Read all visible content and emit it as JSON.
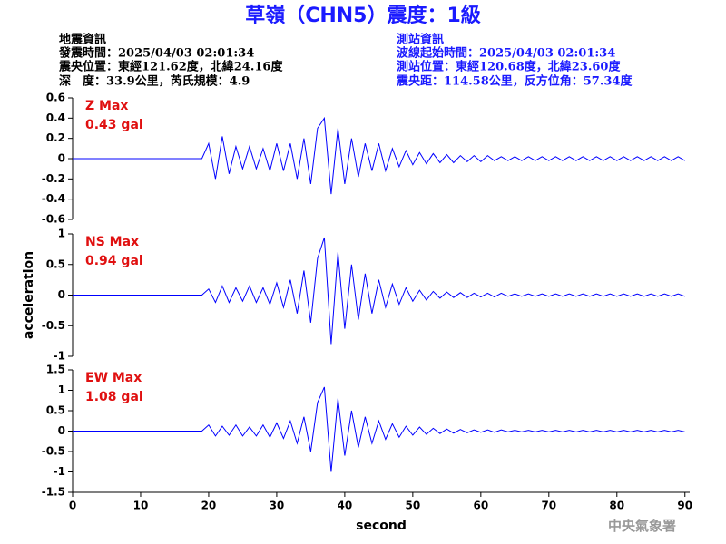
{
  "header": {
    "title": "草嶺（CHN5）震度：1級",
    "left": [
      "地震資訊",
      "發震時間：2025/04/03 02:01:34",
      "震央位置：東經121.62度，北緯24.16度",
      "深　度：33.9公里，芮氏規模：4.9"
    ],
    "right": [
      "測站資訊",
      "波線起始時間：2025/04/03 02:01:34",
      "測站位置：東經120.68度，北緯23.60度",
      "震央距：114.58公里，反方位角：57.34度"
    ],
    "watermark": "中央氣象署"
  },
  "chart_data": [
    {
      "type": "line",
      "annotations": [
        "Z Max",
        "0.43 gal"
      ],
      "xlim": [
        0,
        90.7
      ],
      "ylim": [
        -0.6,
        0.6
      ],
      "yticks": [
        0.6,
        0.4,
        0.2,
        0,
        -0.2,
        -0.4,
        -0.6
      ],
      "x": [
        0,
        19,
        20,
        21,
        22,
        23,
        24,
        25,
        26,
        27,
        28,
        29,
        30,
        31,
        32,
        33,
        34,
        35,
        36,
        37,
        38,
        39,
        40,
        41,
        42,
        43,
        44,
        45,
        46,
        47,
        48,
        49,
        50,
        51,
        52,
        53,
        54,
        55,
        56,
        57,
        58,
        59,
        60,
        61,
        62,
        63,
        64,
        65,
        66,
        67,
        68,
        69,
        70,
        71,
        72,
        73,
        74,
        75,
        76,
        77,
        78,
        79,
        80,
        81,
        82,
        83,
        84,
        85,
        86,
        87,
        88,
        89,
        90
      ],
      "series": [
        {
          "color": "#0000ff",
          "values": [
            0,
            0,
            0.15,
            -0.2,
            0.22,
            -0.15,
            0.12,
            -0.1,
            0.12,
            -0.1,
            0.1,
            -0.12,
            0.15,
            -0.12,
            0.15,
            -0.2,
            0.2,
            -0.25,
            0.3,
            0.4,
            -0.35,
            0.3,
            -0.25,
            0.2,
            -0.18,
            0.15,
            -0.12,
            0.15,
            -0.12,
            0.1,
            -0.08,
            0.08,
            -0.06,
            0.06,
            -0.05,
            0.05,
            -0.04,
            0.04,
            -0.04,
            0.03,
            -0.03,
            0.03,
            -0.03,
            0.03,
            -0.02,
            0.02,
            -0.02,
            0.02,
            -0.02,
            0.02,
            -0.02,
            0.02,
            -0.02,
            0.02,
            -0.02,
            0.02,
            -0.02,
            0.02,
            -0.02,
            0.02,
            -0.02,
            0.02,
            -0.02,
            0.02,
            -0.02,
            0.02,
            -0.02,
            0.02,
            -0.02,
            0.02,
            -0.02,
            0.02,
            -0.02
          ]
        }
      ]
    },
    {
      "type": "line",
      "annotations": [
        "NS Max",
        "0.94 gal"
      ],
      "ylabel": "acceleration",
      "xlim": [
        0,
        90.7
      ],
      "ylim": [
        -1,
        1
      ],
      "yticks": [
        1,
        0.5,
        0,
        -0.5,
        -1
      ],
      "x": [
        0,
        19,
        20,
        21,
        22,
        23,
        24,
        25,
        26,
        27,
        28,
        29,
        30,
        31,
        32,
        33,
        34,
        35,
        36,
        37,
        38,
        39,
        40,
        41,
        42,
        43,
        44,
        45,
        46,
        47,
        48,
        49,
        50,
        51,
        52,
        53,
        54,
        55,
        56,
        57,
        58,
        59,
        60,
        61,
        62,
        63,
        64,
        65,
        66,
        67,
        68,
        69,
        70,
        71,
        72,
        73,
        74,
        75,
        76,
        77,
        78,
        79,
        80,
        81,
        82,
        83,
        84,
        85,
        86,
        87,
        88,
        89,
        90
      ],
      "series": [
        {
          "color": "#0000ff",
          "values": [
            0,
            0,
            0.1,
            -0.12,
            0.15,
            -0.12,
            0.12,
            -0.1,
            0.15,
            -0.12,
            0.12,
            -0.15,
            0.2,
            -0.2,
            0.25,
            -0.3,
            0.4,
            -0.45,
            0.6,
            0.94,
            -0.8,
            0.7,
            -0.55,
            0.5,
            -0.4,
            0.35,
            -0.3,
            0.25,
            -0.2,
            0.18,
            -0.15,
            0.12,
            -0.1,
            0.08,
            -0.08,
            0.06,
            -0.05,
            0.05,
            -0.04,
            0.04,
            -0.04,
            0.03,
            -0.03,
            0.03,
            -0.03,
            0.03,
            -0.02,
            0.02,
            -0.02,
            0.02,
            -0.02,
            0.02,
            -0.02,
            0.02,
            -0.02,
            0.02,
            -0.02,
            0.02,
            -0.02,
            0.02,
            -0.02,
            0.02,
            -0.02,
            0.02,
            -0.02,
            0.02,
            -0.02,
            0.02,
            -0.02,
            0.02,
            -0.02,
            0.02,
            -0.02
          ]
        }
      ]
    },
    {
      "type": "line",
      "annotations": [
        "EW Max",
        "1.08 gal"
      ],
      "xlabel": "second",
      "xlim": [
        0,
        90.7
      ],
      "ylim": [
        -1.5,
        1.5
      ],
      "yticks": [
        1.5,
        1,
        0.5,
        0,
        -0.5,
        -1,
        -1.5
      ],
      "xticks": [
        0,
        10,
        20,
        30,
        40,
        50,
        60,
        70,
        80,
        90
      ],
      "x": [
        0,
        19,
        20,
        21,
        22,
        23,
        24,
        25,
        26,
        27,
        28,
        29,
        30,
        31,
        32,
        33,
        34,
        35,
        36,
        37,
        38,
        39,
        40,
        41,
        42,
        43,
        44,
        45,
        46,
        47,
        48,
        49,
        50,
        51,
        52,
        53,
        54,
        55,
        56,
        57,
        58,
        59,
        60,
        61,
        62,
        63,
        64,
        65,
        66,
        67,
        68,
        69,
        70,
        71,
        72,
        73,
        74,
        75,
        76,
        77,
        78,
        79,
        80,
        81,
        82,
        83,
        84,
        85,
        86,
        87,
        88,
        89,
        90
      ],
      "series": [
        {
          "color": "#0000ff",
          "values": [
            0,
            0,
            0.15,
            -0.12,
            0.12,
            -0.1,
            0.15,
            -0.12,
            0.1,
            -0.12,
            0.15,
            -0.15,
            0.2,
            -0.18,
            0.25,
            -0.3,
            0.35,
            -0.5,
            0.7,
            1.08,
            -1.0,
            0.8,
            -0.6,
            0.5,
            -0.4,
            0.35,
            -0.3,
            0.25,
            -0.2,
            0.18,
            -0.15,
            0.12,
            -0.1,
            0.1,
            -0.08,
            0.07,
            -0.06,
            0.05,
            -0.05,
            0.04,
            -0.04,
            0.03,
            -0.03,
            0.03,
            -0.03,
            0.03,
            -0.02,
            0.02,
            -0.02,
            0.02,
            -0.02,
            0.02,
            -0.02,
            0.02,
            -0.02,
            0.02,
            -0.02,
            0.02,
            -0.02,
            0.02,
            -0.02,
            0.02,
            -0.02,
            0.02,
            -0.02,
            0.02,
            -0.02,
            0.02,
            -0.02,
            0.02,
            -0.02,
            0.02,
            -0.02
          ]
        }
      ]
    }
  ]
}
